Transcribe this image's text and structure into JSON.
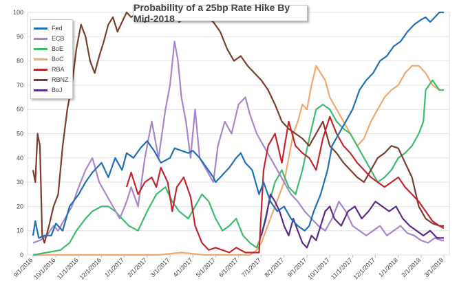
{
  "chart_data": {
    "type": "line",
    "title": "Probability of a 25bp Rate Hike By Mid-2018",
    "xlabel": "",
    "ylabel": "",
    "ylim": [
      0,
      100
    ],
    "yticks": [
      0,
      10,
      20,
      30,
      40,
      50,
      60,
      70,
      80,
      90,
      100
    ],
    "xlim": [
      0,
      18
    ],
    "xticks": [
      {
        "label": "9/1/2016",
        "x": 0
      },
      {
        "label": "10/1/2016",
        "x": 1
      },
      {
        "label": "11/1/2016",
        "x": 2
      },
      {
        "label": "12/1/2016",
        "x": 3
      },
      {
        "label": "1/1/2017",
        "x": 4
      },
      {
        "label": "2/1/2017",
        "x": 5
      },
      {
        "label": "3/1/2017",
        "x": 6
      },
      {
        "label": "4/1/2017",
        "x": 7
      },
      {
        "label": "5/1/2017",
        "x": 8
      },
      {
        "label": "6/1/2017",
        "x": 9
      },
      {
        "label": "7/1/2017",
        "x": 10
      },
      {
        "label": "8/1/2017",
        "x": 11
      },
      {
        "label": "9/1/2017",
        "x": 12
      },
      {
        "label": "10/1/2017",
        "x": 13
      },
      {
        "label": "11/1/2017",
        "x": 14
      },
      {
        "label": "12/1/2017",
        "x": 15
      },
      {
        "label": "1/1/2018",
        "x": 16
      },
      {
        "label": "2/1/2018",
        "x": 17
      },
      {
        "label": "3/1/2018",
        "x": 18
      }
    ],
    "legend_position": "top-left",
    "series": [
      {
        "name": "Fed",
        "color": "#1f6fb5",
        "x": [
          0,
          0.1,
          0.25,
          0.5,
          0.8,
          1.0,
          1.3,
          1.6,
          2.0,
          2.3,
          2.6,
          3.0,
          3.3,
          3.6,
          3.9,
          4.1,
          4.4,
          4.7,
          5.0,
          5.3,
          5.6,
          6.0,
          6.2,
          6.5,
          6.8,
          7.0,
          7.3,
          7.6,
          7.9,
          8.0,
          8.3,
          8.6,
          8.9,
          9.1,
          9.3,
          9.6,
          9.9,
          10.1,
          10.4,
          10.7,
          11.0,
          11.3,
          11.6,
          11.9,
          12.1,
          12.3,
          12.6,
          12.9,
          13.1,
          13.4,
          13.7,
          14.0,
          14.3,
          14.6,
          14.9,
          15.2,
          15.5,
          15.8,
          16.1,
          16.4,
          16.7,
          17.0,
          17.2,
          17.4,
          17.6,
          17.8,
          18.0
        ],
        "values": [
          8,
          14,
          7,
          8,
          8,
          13,
          10,
          20,
          25,
          30,
          34,
          38,
          32,
          40,
          35,
          42,
          40,
          44,
          47,
          43,
          38,
          40,
          44,
          43,
          42,
          43,
          40,
          36,
          32,
          30,
          33,
          36,
          40,
          42,
          38,
          35,
          25,
          30,
          22,
          18,
          20,
          15,
          12,
          10,
          12,
          18,
          25,
          35,
          45,
          50,
          55,
          60,
          68,
          72,
          75,
          80,
          82,
          86,
          88,
          92,
          95,
          97,
          98,
          96,
          98,
          100,
          100
        ]
      },
      {
        "name": "ECB",
        "color": "#a886cc",
        "x": [
          0,
          0.3,
          0.6,
          0.9,
          1.1,
          1.4,
          1.7,
          2.0,
          2.3,
          2.6,
          2.9,
          3.2,
          3.5,
          3.8,
          4.1,
          4.3,
          4.6,
          4.9,
          5.2,
          5.5,
          5.8,
          6.0,
          6.2,
          6.35,
          6.5,
          6.7,
          6.9,
          7.1,
          7.3,
          7.6,
          7.9,
          8.1,
          8.4,
          8.7,
          9.0,
          9.3,
          9.5,
          9.8,
          10.1,
          10.4,
          10.7,
          11.0,
          11.3,
          11.6,
          11.9,
          12.2,
          12.5,
          12.8,
          13.1,
          13.4,
          13.7,
          14.0,
          14.3,
          14.6,
          14.9,
          15.2,
          15.5,
          15.8,
          16.1,
          16.4,
          16.7,
          17.0,
          17.3,
          17.6,
          17.9,
          18.0
        ],
        "values": [
          5,
          6,
          8,
          12,
          10,
          15,
          20,
          28,
          35,
          40,
          30,
          25,
          20,
          15,
          22,
          28,
          20,
          40,
          55,
          40,
          60,
          70,
          88,
          80,
          65,
          55,
          40,
          60,
          40,
          35,
          30,
          45,
          55,
          50,
          62,
          65,
          58,
          50,
          45,
          40,
          35,
          30,
          25,
          22,
          18,
          15,
          12,
          10,
          15,
          22,
          18,
          12,
          10,
          8,
          10,
          12,
          8,
          10,
          12,
          9,
          8,
          6,
          5,
          7,
          6,
          6
        ]
      },
      {
        "name": "BoE",
        "color": "#3dbb6e",
        "x": [
          0,
          1.2,
          1.6,
          1.9,
          2.3,
          2.6,
          3.0,
          3.3,
          3.6,
          3.9,
          4.2,
          4.6,
          5.0,
          5.4,
          5.8,
          6.1,
          6.4,
          6.8,
          7.1,
          7.4,
          7.7,
          8.0,
          8.3,
          8.6,
          8.9,
          9.2,
          9.5,
          9.8,
          10.0,
          10.3,
          10.6,
          10.9,
          11.2,
          11.5,
          11.8,
          12.1,
          12.4,
          12.7,
          13.0,
          13.3,
          13.6,
          13.9,
          14.2,
          14.5,
          14.8,
          15.1,
          15.4,
          15.7,
          16.0,
          16.3,
          16.6,
          16.9,
          17.1,
          17.2,
          17.5,
          17.8,
          18.0
        ],
        "values": [
          0,
          2,
          5,
          10,
          15,
          18,
          20,
          20,
          18,
          15,
          12,
          10,
          18,
          25,
          28,
          22,
          18,
          15,
          20,
          25,
          22,
          15,
          10,
          12,
          15,
          8,
          5,
          3,
          8,
          20,
          30,
          35,
          28,
          25,
          35,
          48,
          60,
          62,
          60,
          55,
          52,
          50,
          45,
          40,
          35,
          30,
          32,
          35,
          40,
          42,
          45,
          50,
          55,
          68,
          72,
          68,
          68
        ]
      },
      {
        "name": "BoC",
        "color": "#f0a870",
        "x": [
          0,
          5.5,
          6.5,
          7.5,
          8.5,
          9.0,
          9.5,
          9.8,
          10.0,
          10.2,
          10.4,
          10.6,
          10.8,
          11.0,
          11.2,
          11.4,
          11.6,
          11.8,
          12.0,
          12.2,
          12.4,
          12.6,
          12.8,
          13.0,
          13.3,
          13.6,
          13.9,
          14.2,
          14.5,
          14.8,
          15.1,
          15.4,
          15.7,
          16.0,
          16.3,
          16.6,
          16.9,
          17.2,
          17.5,
          17.8,
          18.0
        ],
        "values": [
          0,
          0,
          1,
          0,
          0,
          0,
          0,
          2,
          5,
          10,
          15,
          20,
          25,
          30,
          40,
          50,
          55,
          62,
          60,
          70,
          78,
          75,
          72,
          65,
          60,
          55,
          50,
          45,
          48,
          55,
          60,
          65,
          68,
          70,
          75,
          78,
          78,
          75,
          70,
          68,
          68
        ]
      },
      {
        "name": "RBA",
        "color": "#c0272d",
        "x": [
          4.1,
          4.3,
          4.6,
          4.9,
          5.2,
          5.4,
          5.6,
          5.9,
          6.1,
          6.3,
          6.6,
          6.9,
          7.1,
          7.4,
          7.7,
          8.0,
          8.3,
          8.6,
          8.9,
          9.1,
          9.3,
          9.6,
          9.9,
          10.1,
          10.3,
          10.6,
          10.9,
          11.2,
          11.5,
          11.8,
          12.1,
          12.4,
          12.7,
          13.0,
          13.3,
          13.6,
          13.9,
          14.2,
          14.5,
          14.8,
          15.1,
          15.4,
          15.7,
          16.0,
          16.3,
          16.6,
          16.9,
          17.2,
          17.5,
          17.8,
          18.0
        ],
        "values": [
          28,
          34,
          25,
          30,
          32,
          28,
          36,
          30,
          18,
          28,
          32,
          24,
          12,
          5,
          2,
          3,
          2,
          1,
          3,
          2,
          1,
          1,
          1,
          35,
          45,
          50,
          38,
          55,
          45,
          42,
          40,
          35,
          48,
          57,
          50,
          45,
          42,
          38,
          35,
          32,
          30,
          28,
          30,
          32,
          28,
          25,
          22,
          18,
          14,
          12,
          11
        ]
      },
      {
        "name": "RBNZ",
        "color": "#7a3d2e",
        "x": [
          0,
          0.1,
          0.2,
          0.3,
          0.4,
          0.5,
          0.7,
          0.9,
          1.1,
          1.3,
          1.5,
          1.7,
          1.9,
          2.1,
          2.3,
          2.5,
          2.7,
          2.9,
          3.1,
          3.3,
          3.5,
          3.7,
          3.9,
          4.1,
          4.3,
          4.6,
          4.9,
          5.2,
          5.5,
          5.8,
          6.1,
          6.4,
          6.7,
          7.0,
          7.3,
          7.6,
          7.9,
          8.2,
          8.5,
          8.8,
          9.1,
          9.4,
          9.7,
          10.0,
          10.3,
          10.6,
          10.9,
          11.2,
          11.5,
          11.8,
          12.1,
          12.4,
          12.7,
          13.0,
          13.3,
          13.6,
          13.9,
          14.2,
          14.5,
          14.8,
          15.1,
          15.4,
          15.7,
          16.0,
          16.3,
          16.6,
          16.9,
          17.2,
          17.5,
          17.8,
          18.0
        ],
        "values": [
          35,
          30,
          50,
          45,
          8,
          5,
          12,
          20,
          25,
          45,
          60,
          70,
          85,
          95,
          90,
          80,
          75,
          82,
          88,
          95,
          98,
          92,
          96,
          100,
          98,
          100,
          96,
          100,
          100,
          98,
          100,
          96,
          98,
          97,
          100,
          98,
          96,
          92,
          85,
          80,
          82,
          78,
          75,
          72,
          68,
          62,
          55,
          52,
          50,
          48,
          45,
          50,
          55,
          45,
          42,
          38,
          35,
          32,
          30,
          35,
          40,
          42,
          45,
          44,
          38,
          32,
          20,
          15,
          13,
          12,
          12
        ]
      },
      {
        "name": "BoJ",
        "color": "#5a2a8a",
        "x": [
          10.0,
          10.2,
          10.4,
          10.6,
          10.8,
          11.0,
          11.2,
          11.4,
          11.6,
          11.8,
          12.0,
          12.2,
          12.4,
          12.6,
          12.8,
          13.0,
          13.2,
          13.5,
          13.8,
          14.1,
          14.4,
          14.7,
          15.0,
          15.3,
          15.6,
          15.9,
          16.2,
          16.5,
          16.8,
          17.1,
          17.4,
          17.7,
          18.0
        ],
        "values": [
          8,
          15,
          25,
          22,
          18,
          12,
          8,
          15,
          10,
          5,
          3,
          8,
          6,
          12,
          18,
          20,
          15,
          12,
          18,
          20,
          15,
          18,
          22,
          20,
          18,
          20,
          15,
          12,
          10,
          8,
          10,
          7,
          7
        ]
      }
    ]
  }
}
